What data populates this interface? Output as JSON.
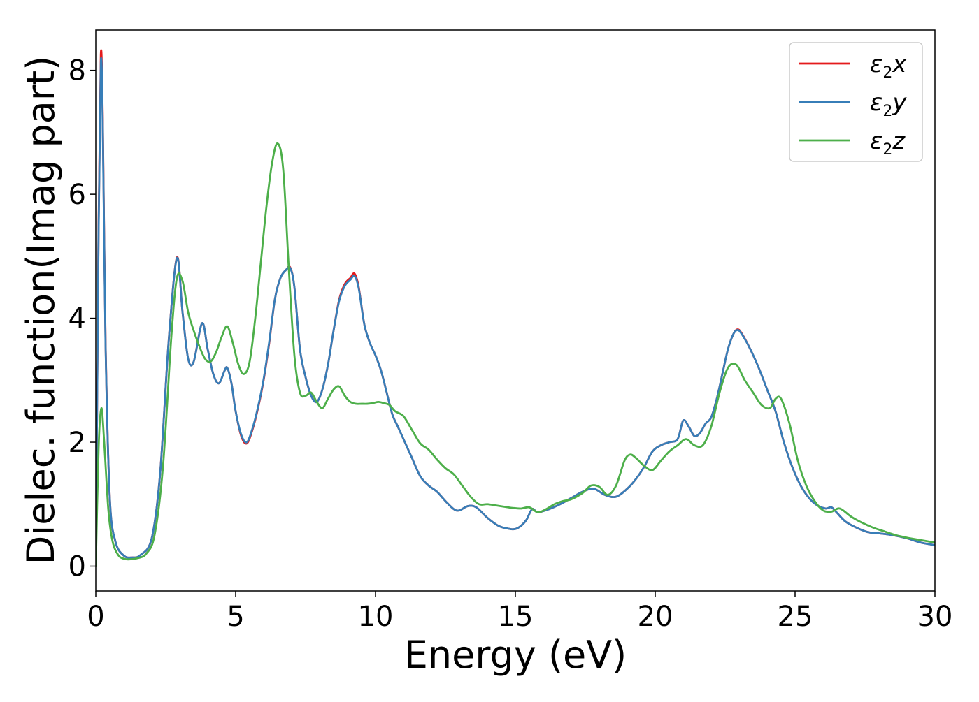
{
  "chart_data": {
    "type": "line",
    "xlabel": "Energy (eV)",
    "ylabel": "Dielec. function(Imag part)",
    "xlim": [
      0,
      30
    ],
    "ylim": [
      -0.4,
      8.65
    ],
    "xticks": [
      0,
      5,
      10,
      15,
      20,
      25,
      30
    ],
    "yticks": [
      0,
      2,
      4,
      6,
      8
    ],
    "grid": false,
    "legend_position": "top-right",
    "series": [
      {
        "name": "ε2x",
        "legend_base": "ε",
        "legend_sub": "2",
        "legend_suffix": "x",
        "color": "#e41a1c",
        "x": [
          0,
          0.1,
          0.18,
          0.25,
          0.35,
          0.5,
          0.7,
          1.0,
          1.3,
          1.6,
          2.0,
          2.3,
          2.6,
          2.9,
          3.1,
          3.3,
          3.5,
          3.8,
          4.0,
          4.2,
          4.4,
          4.6,
          4.7,
          4.85,
          5.0,
          5.2,
          5.4,
          5.6,
          5.8,
          6.0,
          6.2,
          6.4,
          6.6,
          6.8,
          6.95,
          7.1,
          7.3,
          7.5,
          7.7,
          7.9,
          8.1,
          8.3,
          8.5,
          8.7,
          8.9,
          9.1,
          9.25,
          9.4,
          9.6,
          9.8,
          10.0,
          10.2,
          10.4,
          10.6,
          10.8,
          11.0,
          11.3,
          11.6,
          11.9,
          12.2,
          12.5,
          12.8,
          13.0,
          13.3,
          13.6,
          14.0,
          14.4,
          14.8,
          15.0,
          15.2,
          15.4,
          15.6,
          15.8,
          16.2,
          16.6,
          17.0,
          17.4,
          17.8,
          18.2,
          18.6,
          19.0,
          19.3,
          19.6,
          19.9,
          20.2,
          20.5,
          20.8,
          21.0,
          21.2,
          21.4,
          21.6,
          21.8,
          22.0,
          22.2,
          22.4,
          22.6,
          22.8,
          22.95,
          23.1,
          23.4,
          23.7,
          24.0,
          24.3,
          24.6,
          24.9,
          25.2,
          25.5,
          25.8,
          26.1,
          26.3,
          26.5,
          26.8,
          27.2,
          27.6,
          28.0,
          28.5,
          29.0,
          29.5,
          30.0
        ],
        "values": [
          0,
          5.5,
          8.25,
          7.2,
          3.6,
          1.1,
          0.4,
          0.17,
          0.14,
          0.18,
          0.45,
          1.5,
          3.6,
          4.98,
          4.1,
          3.35,
          3.3,
          3.92,
          3.5,
          3.1,
          2.95,
          3.15,
          3.2,
          2.95,
          2.5,
          2.1,
          1.98,
          2.2,
          2.55,
          3.0,
          3.6,
          4.3,
          4.65,
          4.78,
          4.82,
          4.5,
          3.5,
          3.05,
          2.75,
          2.65,
          2.85,
          3.25,
          3.8,
          4.3,
          4.55,
          4.65,
          4.72,
          4.5,
          3.9,
          3.6,
          3.4,
          3.15,
          2.8,
          2.45,
          2.25,
          2.05,
          1.75,
          1.45,
          1.3,
          1.2,
          1.05,
          0.92,
          0.9,
          0.97,
          0.95,
          0.78,
          0.65,
          0.6,
          0.6,
          0.65,
          0.75,
          0.92,
          0.87,
          0.92,
          1.0,
          1.1,
          1.2,
          1.25,
          1.15,
          1.12,
          1.25,
          1.4,
          1.6,
          1.85,
          1.95,
          2.0,
          2.05,
          2.35,
          2.25,
          2.1,
          2.15,
          2.3,
          2.4,
          2.7,
          3.1,
          3.5,
          3.75,
          3.82,
          3.75,
          3.5,
          3.2,
          2.85,
          2.5,
          2.0,
          1.6,
          1.3,
          1.1,
          0.98,
          0.93,
          0.95,
          0.86,
          0.72,
          0.62,
          0.55,
          0.53,
          0.5,
          0.45,
          0.38,
          0.34
        ]
      },
      {
        "name": "ε2y",
        "legend_base": "ε",
        "legend_sub": "2",
        "legend_suffix": "y",
        "color": "#377eb8",
        "x": [
          0,
          0.1,
          0.18,
          0.25,
          0.35,
          0.5,
          0.7,
          1.0,
          1.3,
          1.6,
          2.0,
          2.3,
          2.6,
          2.9,
          3.1,
          3.3,
          3.5,
          3.8,
          4.0,
          4.2,
          4.4,
          4.6,
          4.7,
          4.85,
          5.0,
          5.2,
          5.4,
          5.6,
          5.8,
          6.0,
          6.2,
          6.4,
          6.6,
          6.8,
          6.95,
          7.1,
          7.3,
          7.5,
          7.7,
          7.9,
          8.1,
          8.3,
          8.5,
          8.7,
          8.9,
          9.1,
          9.25,
          9.4,
          9.6,
          9.8,
          10.0,
          10.2,
          10.4,
          10.6,
          10.8,
          11.0,
          11.3,
          11.6,
          11.9,
          12.2,
          12.5,
          12.8,
          13.0,
          13.3,
          13.6,
          14.0,
          14.4,
          14.8,
          15.0,
          15.2,
          15.4,
          15.6,
          15.8,
          16.2,
          16.6,
          17.0,
          17.4,
          17.8,
          18.2,
          18.6,
          19.0,
          19.3,
          19.6,
          19.9,
          20.2,
          20.5,
          20.8,
          21.0,
          21.2,
          21.4,
          21.6,
          21.8,
          22.0,
          22.2,
          22.4,
          22.6,
          22.8,
          22.95,
          23.1,
          23.4,
          23.7,
          24.0,
          24.3,
          24.6,
          24.9,
          25.2,
          25.5,
          25.8,
          26.1,
          26.3,
          26.5,
          26.8,
          27.2,
          27.6,
          28.0,
          28.5,
          29.0,
          29.5,
          30.0
        ],
        "values": [
          0,
          5.4,
          8.12,
          7.1,
          3.55,
          1.1,
          0.4,
          0.17,
          0.14,
          0.18,
          0.45,
          1.5,
          3.6,
          4.97,
          4.1,
          3.35,
          3.3,
          3.92,
          3.5,
          3.1,
          2.95,
          3.15,
          3.2,
          2.95,
          2.5,
          2.12,
          2.0,
          2.22,
          2.57,
          3.02,
          3.62,
          4.3,
          4.65,
          4.78,
          4.81,
          4.5,
          3.5,
          3.05,
          2.75,
          2.65,
          2.85,
          3.25,
          3.8,
          4.28,
          4.52,
          4.62,
          4.68,
          4.48,
          3.9,
          3.6,
          3.4,
          3.15,
          2.8,
          2.45,
          2.25,
          2.05,
          1.75,
          1.45,
          1.3,
          1.2,
          1.05,
          0.92,
          0.9,
          0.97,
          0.95,
          0.78,
          0.65,
          0.6,
          0.6,
          0.65,
          0.75,
          0.92,
          0.87,
          0.92,
          1.0,
          1.1,
          1.2,
          1.25,
          1.15,
          1.12,
          1.25,
          1.4,
          1.6,
          1.85,
          1.95,
          2.0,
          2.05,
          2.35,
          2.25,
          2.1,
          2.15,
          2.3,
          2.4,
          2.7,
          3.1,
          3.5,
          3.75,
          3.81,
          3.74,
          3.5,
          3.2,
          2.85,
          2.5,
          2.0,
          1.6,
          1.3,
          1.1,
          0.98,
          0.93,
          0.95,
          0.86,
          0.72,
          0.62,
          0.55,
          0.53,
          0.5,
          0.45,
          0.38,
          0.34
        ]
      },
      {
        "name": "ε2z",
        "legend_base": "ε",
        "legend_sub": "2",
        "legend_suffix": "z",
        "color": "#4daf4a",
        "x": [
          0,
          0.1,
          0.2,
          0.3,
          0.45,
          0.6,
          0.8,
          1.0,
          1.2,
          1.5,
          1.8,
          2.1,
          2.4,
          2.7,
          2.9,
          3.1,
          3.3,
          3.5,
          3.7,
          3.9,
          4.1,
          4.3,
          4.5,
          4.7,
          4.9,
          5.1,
          5.3,
          5.5,
          5.7,
          5.9,
          6.1,
          6.3,
          6.5,
          6.7,
          6.9,
          7.1,
          7.3,
          7.5,
          7.7,
          7.9,
          8.1,
          8.3,
          8.5,
          8.7,
          8.9,
          9.1,
          9.3,
          9.5,
          9.7,
          9.9,
          10.1,
          10.3,
          10.5,
          10.7,
          11.0,
          11.3,
          11.6,
          11.9,
          12.2,
          12.5,
          12.8,
          13.1,
          13.4,
          13.7,
          14.0,
          14.3,
          14.6,
          14.9,
          15.2,
          15.5,
          15.8,
          16.1,
          16.4,
          16.7,
          17.0,
          17.4,
          17.7,
          18.0,
          18.3,
          18.6,
          18.9,
          19.1,
          19.3,
          19.6,
          19.9,
          20.2,
          20.5,
          20.8,
          21.1,
          21.4,
          21.7,
          22.0,
          22.3,
          22.6,
          22.9,
          23.2,
          23.5,
          23.8,
          24.1,
          24.3,
          24.5,
          24.8,
          25.1,
          25.4,
          25.7,
          26.0,
          26.3,
          26.6,
          27.0,
          27.4,
          27.8,
          28.2,
          28.6,
          29.0,
          29.5,
          30.0
        ],
        "values": [
          0,
          1.9,
          2.55,
          2.0,
          0.9,
          0.4,
          0.18,
          0.12,
          0.11,
          0.13,
          0.2,
          0.5,
          1.6,
          3.7,
          4.65,
          4.6,
          4.1,
          3.8,
          3.55,
          3.35,
          3.3,
          3.45,
          3.7,
          3.87,
          3.6,
          3.25,
          3.1,
          3.3,
          4.0,
          4.9,
          5.8,
          6.5,
          6.82,
          6.4,
          4.8,
          3.4,
          2.8,
          2.75,
          2.8,
          2.65,
          2.55,
          2.7,
          2.85,
          2.9,
          2.75,
          2.65,
          2.62,
          2.62,
          2.62,
          2.63,
          2.65,
          2.63,
          2.6,
          2.5,
          2.42,
          2.2,
          1.98,
          1.88,
          1.72,
          1.58,
          1.48,
          1.3,
          1.12,
          1.0,
          1.0,
          0.98,
          0.96,
          0.94,
          0.93,
          0.95,
          0.87,
          0.92,
          1.0,
          1.05,
          1.08,
          1.18,
          1.3,
          1.28,
          1.15,
          1.3,
          1.7,
          1.8,
          1.75,
          1.62,
          1.55,
          1.7,
          1.85,
          1.95,
          2.05,
          1.95,
          1.95,
          2.25,
          2.8,
          3.2,
          3.25,
          3.0,
          2.8,
          2.6,
          2.55,
          2.7,
          2.7,
          2.3,
          1.7,
          1.3,
          1.05,
          0.9,
          0.88,
          0.93,
          0.8,
          0.7,
          0.62,
          0.56,
          0.5,
          0.46,
          0.42,
          0.38
        ]
      }
    ]
  }
}
